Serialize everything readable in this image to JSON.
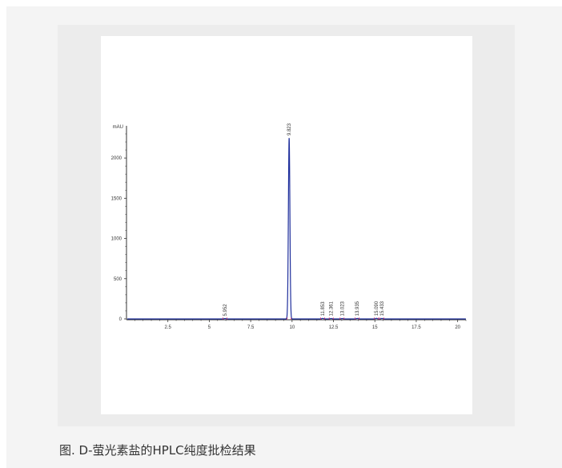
{
  "figure": {
    "caption": "图. D-萤光素盐的HPLC纯度批检结果"
  },
  "colors": {
    "trace": "#1f2f9c",
    "baseline_marker": "#d4145a",
    "axis": "#333333"
  },
  "chart_data": {
    "type": "line",
    "title": "",
    "xlabel": "",
    "ylabel": "mAU",
    "xlim": [
      0,
      20.5
    ],
    "ylim": [
      -80,
      2380
    ],
    "x_ticks": [
      2.5,
      5,
      7.5,
      10,
      12.5,
      15,
      17.5,
      20
    ],
    "x_tick_labels": [
      "2.5",
      "5",
      "7.5",
      "10",
      "12.5",
      "15",
      "17.5",
      "20"
    ],
    "y_ticks": [
      0,
      500,
      1000,
      1500,
      2000
    ],
    "y_tick_labels": [
      "0",
      "500",
      "1000",
      "1500",
      "2000"
    ],
    "grid": false,
    "peaks": [
      {
        "label": "5.952",
        "x": 5.952,
        "height": 5
      },
      {
        "label": "9.823",
        "x": 9.823,
        "height": 2250
      },
      {
        "label": "11.853",
        "x": 11.853,
        "height": 6
      },
      {
        "label": "12.361",
        "x": 12.361,
        "height": 5
      },
      {
        "label": "13.023",
        "x": 13.023,
        "height": 5
      },
      {
        "label": "13.935",
        "x": 13.935,
        "height": 6
      },
      {
        "label": "15.090",
        "x": 15.09,
        "height": 7
      },
      {
        "label": "15.433",
        "x": 15.433,
        "height": 6
      }
    ]
  }
}
